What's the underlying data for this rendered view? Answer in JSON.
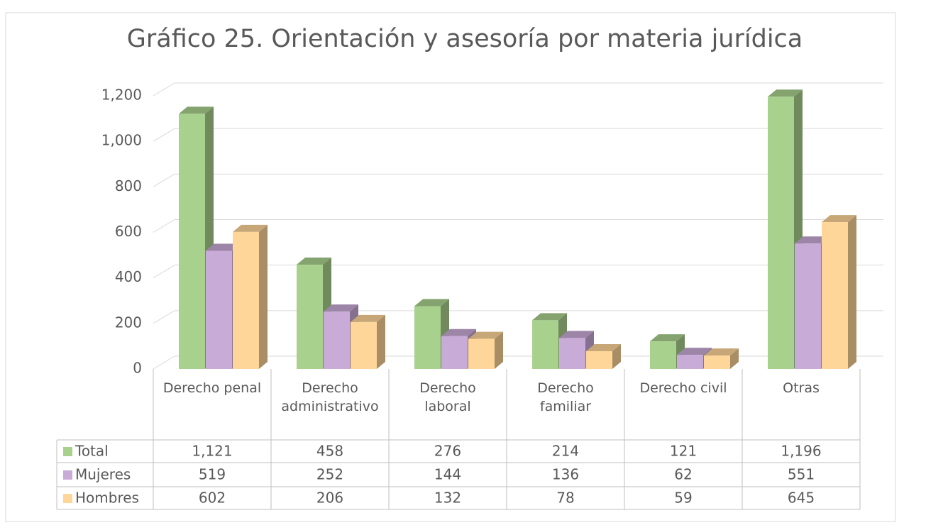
{
  "chart_data": {
    "type": "bar3d",
    "title": "Gráfico 25. Orientación y asesoría por materia jurídica",
    "categories": [
      "Derecho penal",
      "Derecho administrativo",
      "Derecho laboral",
      "Derecho familiar",
      "Derecho civil",
      "Otras"
    ],
    "series": [
      {
        "name": "Total",
        "color": "#a9d18e",
        "values": [
          1121,
          458,
          276,
          214,
          121,
          1196
        ],
        "value_labels": [
          "1,121",
          "458",
          "276",
          "214",
          "121",
          "1,196"
        ]
      },
      {
        "name": "Mujeres",
        "color": "#c9abd8",
        "values": [
          519,
          252,
          144,
          136,
          62,
          551
        ],
        "value_labels": [
          "519",
          "252",
          "144",
          "136",
          "62",
          "551"
        ]
      },
      {
        "name": "Hombres",
        "color": "#ffd699",
        "values": [
          602,
          206,
          132,
          78,
          59,
          645
        ],
        "value_labels": [
          "602",
          "206",
          "132",
          "78",
          "59",
          "645"
        ]
      }
    ],
    "ylim": [
      0,
      1200
    ],
    "yticks": [
      0,
      200,
      400,
      600,
      800,
      {
        "value": 1000,
        "label": "1,000"
      },
      {
        "value": 1200,
        "label": "1,200"
      }
    ],
    "grid": true
  }
}
